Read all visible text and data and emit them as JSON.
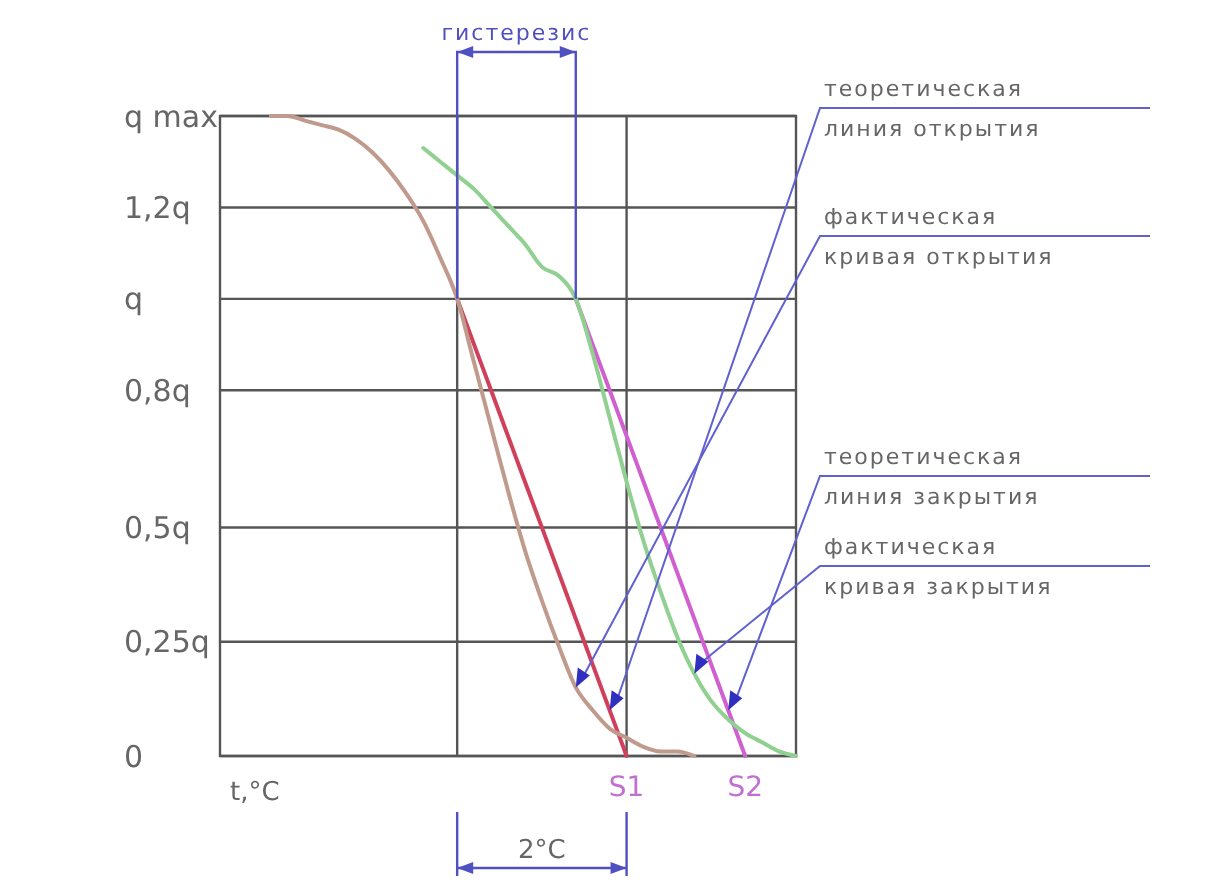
{
  "chart_data": {
    "type": "line",
    "xlabel": "t,°C",
    "categories": [
      null,
      null,
      null,
      null,
      null,
      null,
      null,
      null,
      null,
      null,
      null,
      null,
      null,
      null,
      null,
      null,
      null,
      null,
      null,
      null,
      null,
      null,
      null,
      null,
      "S1",
      null,
      null,
      null,
      null,
      null,
      null,
      "S2",
      null,
      null,
      null
    ],
    "ylim": [
      0,
      1.4
    ],
    "yticks": [
      {
        "value": 0,
        "label": "0"
      },
      {
        "value": 0.25,
        "label": "0,25q"
      },
      {
        "value": 0.5,
        "label": "0,5q"
      },
      {
        "value": 0.8,
        "label": "0,8q"
      },
      {
        "value": 1,
        "label": "q"
      },
      {
        "value": 1.2,
        "label": "1,2q"
      },
      {
        "value": 1.4,
        "label": "q max"
      }
    ],
    "grid": true,
    "marker": "none",
    "line_style": "solid",
    "series": [
      {
        "color": "#d0405a",
        "values": [
          null,
          null,
          null,
          null,
          null,
          null,
          null,
          null,
          null,
          null,
          null,
          null,
          null,
          null,
          1,
          0.9,
          0.8,
          0.7,
          0.6,
          0.5,
          0.4,
          0.3,
          0.2,
          0.1,
          0,
          null,
          null,
          null,
          null,
          null,
          null,
          null,
          null,
          null,
          null
        ]
      },
      {
        "color": "#c09a8c",
        "values": [
          null,
          null,
          null,
          1.4,
          1.4,
          1.39,
          1.38,
          1.37,
          1.35,
          1.32,
          1.28,
          1.23,
          1.17,
          1.09,
          1.0,
          0.86,
          0.72,
          0.58,
          0.45,
          0.34,
          0.24,
          0.15,
          0.1,
          0.06,
          0.04,
          0.02,
          0.01,
          0.01,
          0,
          null,
          null,
          null,
          null,
          null,
          null
        ]
      },
      {
        "color": "#d060d0",
        "values": [
          null,
          null,
          null,
          null,
          null,
          null,
          null,
          null,
          null,
          null,
          null,
          null,
          null,
          null,
          null,
          null,
          null,
          null,
          null,
          null,
          null,
          1,
          0.9,
          0.8,
          0.7,
          0.6,
          0.5,
          0.4,
          0.3,
          0.2,
          0.1,
          0,
          null,
          null,
          null
        ]
      },
      {
        "color": "#90d090",
        "values": [
          null,
          null,
          null,
          null,
          null,
          null,
          null,
          null,
          null,
          null,
          null,
          null,
          1.33,
          1.3,
          1.27,
          1.24,
          1.2,
          1.16,
          1.12,
          1.07,
          1.05,
          1.0,
          0.88,
          0.74,
          0.6,
          0.47,
          0.36,
          0.26,
          0.18,
          0.12,
          0.08,
          0.05,
          0.03,
          0.01,
          0
        ]
      }
    ],
    "annotations": [
      "теоретическая линия открытия",
      "фактическая кривая открытия",
      "теоретическая линия закрытия",
      "фактическая кривая закрытия",
      "гистерезис",
      "2°C"
    ]
  }
}
